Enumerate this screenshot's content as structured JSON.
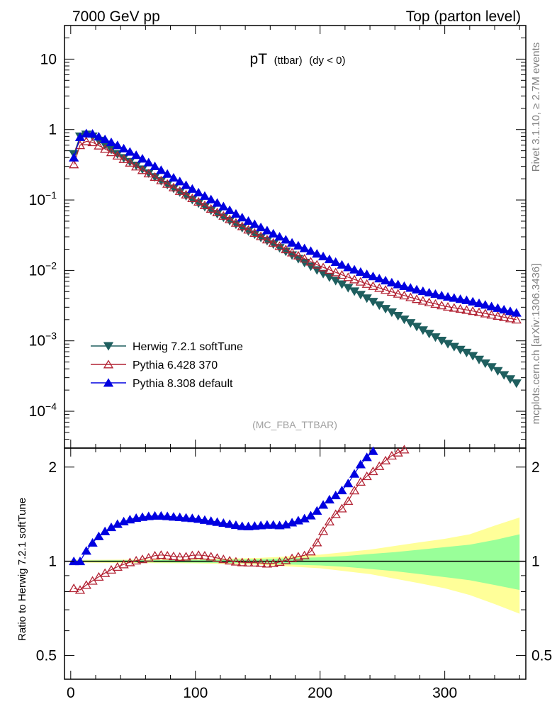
{
  "header": {
    "left": "7000 GeV pp",
    "right": "Top (parton level)"
  },
  "title": {
    "main": "pT",
    "sub": "(ttbar)",
    "cut": "(dy < 0)"
  },
  "side_labels": {
    "rivet": "Rivet 3.1.10, ≥ 2.7M events",
    "mcplots": "mcplots.cern.ch [arXiv:1306.3436]"
  },
  "analysis_tag": "(MC_FBA_TTBAR)",
  "ratio_ylabel": "Ratio to Herwig 7.2.1 softTune",
  "colors": {
    "herwig": "#1f5f5f",
    "pythia6": "#b22233",
    "pythia8": "#0000e0",
    "band_inner": "#99ff99",
    "band_outer": "#ffff99"
  },
  "chart_data": {
    "type": "line",
    "x_range": [
      -5,
      365
    ],
    "xticks": [
      0,
      100,
      200,
      300
    ],
    "main_panel": {
      "yscale": "log",
      "ylim": [
        3e-05,
        30
      ],
      "ytick_labels": [
        {
          "value": 10,
          "base": "10",
          "exp": ""
        },
        {
          "value": 1,
          "base": "1",
          "exp": ""
        },
        {
          "value": 0.1,
          "base": "10",
          "exp": "−1"
        },
        {
          "value": 0.01,
          "base": "10",
          "exp": "−2"
        },
        {
          "value": 0.001,
          "base": "10",
          "exp": "−3"
        },
        {
          "value": 0.0001,
          "base": "10",
          "exp": "−4"
        }
      ],
      "legend_position": "lower-left",
      "series": [
        {
          "name": "Herwig 7.2.1 softTune",
          "marker": "triangle-down",
          "points": [
            [
              2.5,
              0.45
            ],
            [
              7.5,
              0.8
            ],
            [
              12.5,
              0.85
            ],
            [
              17.5,
              0.8
            ],
            [
              25,
              0.65
            ],
            [
              35,
              0.48
            ],
            [
              45,
              0.37
            ],
            [
              55,
              0.29
            ],
            [
              65,
              0.225
            ],
            [
              80,
              0.155
            ],
            [
              100,
              0.095
            ],
            [
              120,
              0.06
            ],
            [
              140,
              0.038
            ],
            [
              160,
              0.025
            ],
            [
              180,
              0.0155
            ],
            [
              200,
              0.0095
            ],
            [
              220,
              0.006
            ],
            [
              240,
              0.0038
            ],
            [
              260,
              0.0024
            ],
            [
              280,
              0.0015
            ],
            [
              300,
              0.00095
            ],
            [
              320,
              0.00065
            ],
            [
              340,
              0.0004
            ],
            [
              357.5,
              0.00025
            ]
          ]
        },
        {
          "name": "Pythia 6.428 370",
          "marker": "triangle-up-open",
          "points": [
            [
              2.5,
              0.32
            ],
            [
              7.5,
              0.6
            ],
            [
              12.5,
              0.68
            ],
            [
              17.5,
              0.66
            ],
            [
              25,
              0.56
            ],
            [
              35,
              0.45
            ],
            [
              45,
              0.36
            ],
            [
              55,
              0.28
            ],
            [
              65,
              0.225
            ],
            [
              80,
              0.16
            ],
            [
              100,
              0.1
            ],
            [
              120,
              0.063
            ],
            [
              140,
              0.04
            ],
            [
              160,
              0.026
            ],
            [
              180,
              0.017
            ],
            [
              200,
              0.0115
            ],
            [
              220,
              0.0083
            ],
            [
              240,
              0.0062
            ],
            [
              260,
              0.0048
            ],
            [
              280,
              0.0038
            ],
            [
              300,
              0.0031
            ],
            [
              320,
              0.0027
            ],
            [
              340,
              0.0023
            ],
            [
              357.5,
              0.002
            ]
          ]
        },
        {
          "name": "Pythia 8.308 default",
          "marker": "triangle-up",
          "points": [
            [
              2.5,
              0.4
            ],
            [
              7.5,
              0.78
            ],
            [
              12.5,
              0.88
            ],
            [
              17.5,
              0.87
            ],
            [
              25,
              0.76
            ],
            [
              35,
              0.63
            ],
            [
              45,
              0.51
            ],
            [
              55,
              0.41
            ],
            [
              65,
              0.32
            ],
            [
              80,
              0.22
            ],
            [
              100,
              0.135
            ],
            [
              120,
              0.086
            ],
            [
              140,
              0.053
            ],
            [
              160,
              0.035
            ],
            [
              180,
              0.0235
            ],
            [
              200,
              0.0165
            ],
            [
              220,
              0.0115
            ],
            [
              240,
              0.0085
            ],
            [
              260,
              0.0065
            ],
            [
              280,
              0.0052
            ],
            [
              300,
              0.0043
            ],
            [
              320,
              0.0037
            ],
            [
              340,
              0.003
            ],
            [
              357.5,
              0.0025
            ]
          ]
        }
      ]
    },
    "ratio_panel": {
      "yscale": "log",
      "ylim": [
        0.42,
        2.3
      ],
      "ytick_labels": [
        "2",
        "1",
        "0.5"
      ],
      "reference": 1,
      "series": [
        {
          "name": "Pythia 6.428 370",
          "points": [
            [
              2.5,
              0.82
            ],
            [
              7.5,
              0.81
            ],
            [
              12.5,
              0.84
            ],
            [
              20,
              0.88
            ],
            [
              30,
              0.93
            ],
            [
              40,
              0.97
            ],
            [
              50,
              1.0
            ],
            [
              60,
              1.02
            ],
            [
              70,
              1.05
            ],
            [
              80,
              1.04
            ],
            [
              90,
              1.03
            ],
            [
              100,
              1.05
            ],
            [
              110,
              1.04
            ],
            [
              120,
              1.02
            ],
            [
              130,
              1.0
            ],
            [
              140,
              0.99
            ],
            [
              150,
              0.99
            ],
            [
              160,
              0.98
            ],
            [
              170,
              1.0
            ],
            [
              180,
              1.03
            ],
            [
              190,
              1.05
            ],
            [
              195,
              1.1
            ],
            [
              200,
              1.2
            ],
            [
              205,
              1.3
            ],
            [
              210,
              1.38
            ],
            [
              215,
              1.45
            ],
            [
              220,
              1.5
            ],
            [
              225,
              1.62
            ],
            [
              230,
              1.75
            ],
            [
              235,
              1.84
            ],
            [
              240,
              1.9
            ],
            [
              245,
              1.98
            ],
            [
              250,
              2.05
            ],
            [
              255,
              2.15
            ],
            [
              260,
              2.2
            ],
            [
              265,
              2.25
            ],
            [
              270,
              2.3
            ]
          ]
        },
        {
          "name": "Pythia 8.308 default",
          "points": [
            [
              2.5,
              1.0
            ],
            [
              7.5,
              1.0
            ],
            [
              12.5,
              1.08
            ],
            [
              20,
              1.18
            ],
            [
              30,
              1.27
            ],
            [
              40,
              1.33
            ],
            [
              50,
              1.37
            ],
            [
              60,
              1.39
            ],
            [
              70,
              1.4
            ],
            [
              80,
              1.39
            ],
            [
              90,
              1.38
            ],
            [
              100,
              1.37
            ],
            [
              110,
              1.35
            ],
            [
              120,
              1.33
            ],
            [
              130,
              1.31
            ],
            [
              140,
              1.29
            ],
            [
              150,
              1.3
            ],
            [
              160,
              1.31
            ],
            [
              170,
              1.3
            ],
            [
              180,
              1.34
            ],
            [
              190,
              1.38
            ],
            [
              195,
              1.42
            ],
            [
              200,
              1.48
            ],
            [
              205,
              1.55
            ],
            [
              210,
              1.6
            ],
            [
              215,
              1.65
            ],
            [
              220,
              1.72
            ],
            [
              225,
              1.83
            ],
            [
              230,
              1.98
            ],
            [
              235,
              2.1
            ],
            [
              240,
              2.2
            ],
            [
              245,
              2.3
            ]
          ]
        }
      ],
      "band": [
        [
          0,
          0.99,
          1.01,
          0.995,
          1.005
        ],
        [
          100,
          0.985,
          1.015,
          0.99,
          1.01
        ],
        [
          150,
          0.975,
          1.025,
          0.985,
          1.015
        ],
        [
          180,
          0.96,
          1.04,
          0.975,
          1.025
        ],
        [
          200,
          0.95,
          1.05,
          0.97,
          1.03
        ],
        [
          220,
          0.93,
          1.07,
          0.96,
          1.04
        ],
        [
          240,
          0.91,
          1.09,
          0.945,
          1.055
        ],
        [
          260,
          0.88,
          1.12,
          0.93,
          1.07
        ],
        [
          280,
          0.85,
          1.15,
          0.91,
          1.09
        ],
        [
          300,
          0.82,
          1.18,
          0.89,
          1.11
        ],
        [
          320,
          0.78,
          1.22,
          0.87,
          1.13
        ],
        [
          340,
          0.73,
          1.3,
          0.84,
          1.17
        ],
        [
          360,
          0.68,
          1.38,
          0.81,
          1.22
        ]
      ]
    }
  }
}
